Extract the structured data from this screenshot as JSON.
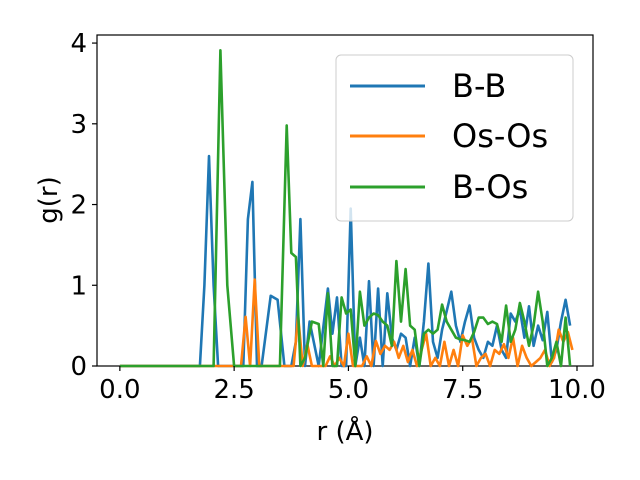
{
  "chart_data": {
    "type": "line",
    "title": "",
    "xlabel": "r (Å)",
    "ylabel": "g(r)",
    "xlim": [
      -0.5,
      10.35
    ],
    "ylim": [
      0,
      4.1
    ],
    "xticks": [
      0.0,
      2.5,
      5.0,
      7.5,
      10.0
    ],
    "xtick_labels": [
      "0.0",
      "2.5",
      "5.0",
      "7.5",
      "10.0"
    ],
    "yticks": [
      0,
      1,
      2,
      3,
      4
    ],
    "ytick_labels": [
      "0",
      "1",
      "2",
      "3",
      "4"
    ],
    "grid": false,
    "legend_position": "top-right",
    "series": [
      {
        "name": "B-B",
        "color": "#1f77b4",
        "x": [
          0.0,
          0.5,
          1.0,
          1.5,
          1.75,
          1.85,
          1.95,
          2.05,
          2.15,
          2.7,
          2.8,
          2.9,
          3.0,
          3.1,
          3.3,
          3.45,
          3.6,
          3.75,
          3.85,
          3.95,
          4.05,
          4.15,
          4.35,
          4.55,
          4.65,
          4.75,
          4.85,
          4.95,
          5.05,
          5.15,
          5.25,
          5.35,
          5.45,
          5.55,
          5.65,
          5.75,
          5.85,
          5.95,
          6.05,
          6.15,
          6.25,
          6.35,
          6.45,
          6.55,
          6.65,
          6.75,
          6.85,
          6.95,
          7.05,
          7.15,
          7.25,
          7.35,
          7.45,
          7.55,
          7.65,
          7.75,
          7.85,
          7.95,
          8.05,
          8.15,
          8.25,
          8.35,
          8.45,
          8.55,
          8.65,
          8.75,
          8.85,
          8.95,
          9.05,
          9.15,
          9.25,
          9.35,
          9.45,
          9.55,
          9.65,
          9.75,
          9.85
        ],
        "values": [
          0,
          0,
          0,
          0,
          0,
          1.0,
          2.6,
          1.0,
          0,
          0,
          1.82,
          2.28,
          0,
          0,
          0.87,
          0.82,
          0,
          0,
          0.3,
          1.82,
          0,
          0.55,
          0,
          0.96,
          0.4,
          0.85,
          0,
          0,
          1.95,
          0,
          0.35,
          0,
          1.05,
          0,
          0.96,
          0,
          0.9,
          0.35,
          0.2,
          0.4,
          0.35,
          0,
          0.35,
          0,
          0.55,
          1.27,
          0.3,
          0.1,
          0.45,
          0.68,
          0.92,
          0.5,
          0.3,
          0.55,
          0.75,
          0.35,
          0.2,
          0.1,
          0.3,
          0.25,
          0.5,
          0.2,
          0.1,
          0.65,
          0.55,
          0.7,
          0.35,
          0.74,
          0.25,
          0.5,
          0.32,
          0.67,
          0.05,
          0.2,
          0.55,
          0.82,
          0.5
        ]
      },
      {
        "name": "Os-Os",
        "color": "#ff7f0e",
        "x": [
          0.0,
          0.5,
          1.0,
          1.5,
          2.0,
          2.5,
          2.65,
          2.75,
          2.85,
          2.95,
          3.05,
          3.15,
          3.7,
          3.8,
          3.9,
          4.0,
          4.1,
          4.2,
          4.5,
          4.6,
          4.7,
          4.8,
          4.9,
          5.0,
          5.1,
          5.3,
          5.4,
          5.5,
          5.6,
          5.7,
          5.8,
          5.9,
          6.0,
          6.1,
          6.2,
          6.3,
          6.4,
          6.5,
          6.6,
          6.7,
          6.8,
          6.9,
          7.0,
          7.1,
          7.2,
          7.3,
          7.4,
          7.5,
          7.6,
          7.7,
          7.8,
          7.9,
          8.0,
          8.1,
          8.2,
          8.3,
          8.4,
          8.5,
          8.6,
          8.7,
          8.8,
          8.9,
          9.0,
          9.1,
          9.2,
          9.3,
          9.4,
          9.5,
          9.6,
          9.7,
          9.8,
          9.9
        ],
        "values": [
          0,
          0,
          0,
          0,
          0,
          0,
          0,
          0.61,
          0,
          1.07,
          0,
          0,
          0,
          0,
          0.62,
          0,
          0.27,
          0,
          0,
          0.12,
          0,
          0.1,
          0,
          0.4,
          0,
          0,
          0.12,
          0,
          0.31,
          0.15,
          0.25,
          0.2,
          0.3,
          0.1,
          0.25,
          0.05,
          0.2,
          0,
          0.2,
          0.4,
          0,
          0.1,
          0,
          0.3,
          0,
          0.2,
          0,
          0.38,
          0.25,
          0.35,
          0,
          0.1,
          0.15,
          0,
          0.2,
          0.15,
          0.27,
          0.1,
          0.35,
          0,
          0.25,
          0.1,
          0,
          0.05,
          0.1,
          0.2,
          0,
          0.1,
          0.45,
          0.3,
          0.42,
          0.2
        ]
      },
      {
        "name": "B-Os",
        "color": "#2ca02c",
        "x": [
          0.0,
          0.5,
          1.0,
          1.5,
          2.05,
          2.2,
          2.35,
          2.5,
          3.0,
          3.35,
          3.5,
          3.65,
          3.75,
          3.85,
          3.95,
          4.05,
          4.2,
          4.35,
          4.45,
          4.55,
          4.65,
          4.75,
          4.85,
          4.95,
          5.05,
          5.15,
          5.25,
          5.35,
          5.45,
          5.55,
          5.65,
          5.75,
          5.85,
          5.95,
          6.05,
          6.15,
          6.25,
          6.35,
          6.45,
          6.55,
          6.65,
          6.75,
          6.85,
          6.95,
          7.05,
          7.15,
          7.25,
          7.35,
          7.45,
          7.55,
          7.65,
          7.75,
          7.85,
          7.95,
          8.05,
          8.15,
          8.25,
          8.35,
          8.45,
          8.55,
          8.65,
          8.75,
          8.85,
          8.95,
          9.05,
          9.15,
          9.25,
          9.35,
          9.45,
          9.55,
          9.65,
          9.75,
          9.85
        ],
        "values": [
          0,
          0,
          0,
          0,
          0,
          3.91,
          1.0,
          0,
          0,
          0,
          0,
          2.98,
          1.4,
          1.35,
          0,
          0.1,
          0.55,
          0.52,
          0,
          0.9,
          0,
          0,
          0.85,
          0.65,
          0.7,
          0,
          0.92,
          0.5,
          0.6,
          0.65,
          0.63,
          0.55,
          0.5,
          0.25,
          1.3,
          0.55,
          1.2,
          0.5,
          0.45,
          0,
          0.4,
          0.45,
          0.4,
          0.45,
          0.76,
          0.55,
          0.45,
          0.35,
          0.33,
          0.32,
          0.3,
          0.42,
          0.6,
          0.6,
          0.52,
          0.55,
          0.52,
          0.3,
          0.75,
          0.3,
          0.45,
          0.78,
          0.55,
          0.25,
          0.5,
          0.92,
          0.55,
          0,
          0.1,
          0.3,
          0,
          0.6,
          0
        ]
      }
    ]
  }
}
